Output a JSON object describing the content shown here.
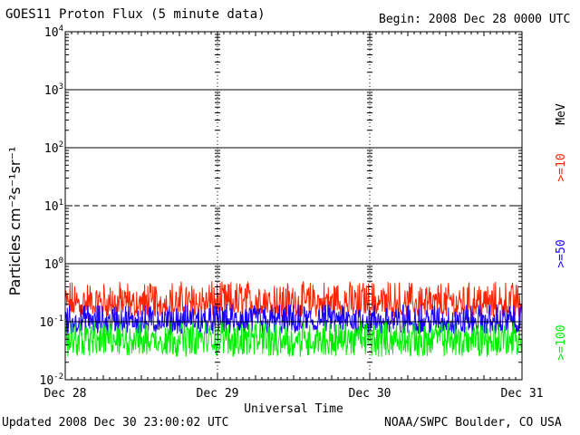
{
  "header": {
    "title": "GOES11 Proton Flux (5 minute data)",
    "begin": "Begin: 2008 Dec 28 0000 UTC"
  },
  "footer": {
    "updated": "Updated 2008 Dec 30 23:00:02 UTC",
    "credit": "NOAA/SWPC Boulder, CO USA"
  },
  "chart_data": {
    "type": "line",
    "title": "GOES11 Proton Flux (5 minute data)",
    "xlabel": "Universal Time",
    "ylabel": "Particles cm⁻²s⁻¹sr⁻¹",
    "y_scale": "log",
    "ylim": [
      0.01,
      10000
    ],
    "xlim": [
      "2008-12-28 00:00",
      "2008-12-31 00:00"
    ],
    "x_ticks": [
      "Dec 28",
      "Dec 29",
      "Dec 30",
      "Dec 31"
    ],
    "y_ticks": [
      {
        "base": "10",
        "exp": "-2"
      },
      {
        "base": "10",
        "exp": "-1"
      },
      {
        "base": "10",
        "exp": "0"
      },
      {
        "base": "10",
        "exp": "1"
      },
      {
        "base": "10",
        "exp": "2"
      },
      {
        "base": "10",
        "exp": "3"
      },
      {
        "base": "10",
        "exp": "4"
      }
    ],
    "reference_lines": [
      {
        "value": 10,
        "style": "dashed"
      }
    ],
    "grid": true,
    "units_label": "MeV",
    "series": [
      {
        "name": ">=10",
        "color": "#ff2200",
        "typical_min": 0.12,
        "typical_max": 0.5,
        "median": 0.2
      },
      {
        "name": ">=50",
        "color": "#1a00ff",
        "typical_min": 0.06,
        "typical_max": 0.2,
        "median": 0.1
      },
      {
        "name": ">=100",
        "color": "#00ee00",
        "typical_min": 0.025,
        "typical_max": 0.1,
        "median": 0.05
      }
    ]
  }
}
